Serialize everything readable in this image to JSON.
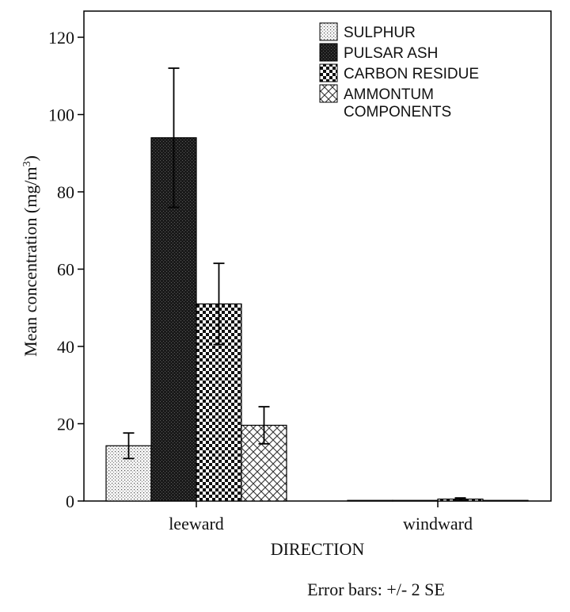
{
  "chart_data": {
    "type": "bar",
    "categories": [
      "leeward",
      "windward"
    ],
    "series": [
      {
        "name": "SULPHUR",
        "pattern": "dots-light",
        "values": [
          14.3,
          0.1
        ],
        "error": [
          3.3,
          0.0
        ]
      },
      {
        "name": "PULSAR ASH",
        "pattern": "dark-fine",
        "values": [
          94,
          0.1
        ],
        "error": [
          18,
          0.0
        ]
      },
      {
        "name": "CARBON RESIDUE",
        "pattern": "checker",
        "values": [
          51,
          0.5
        ],
        "error": [
          10.5,
          0.3
        ]
      },
      {
        "name": "AMMONTUM COMPONENTS",
        "legend_lines": [
          "AMMONTUM",
          "COMPONENTS"
        ],
        "pattern": "crosshatch",
        "values": [
          19.6,
          0.1
        ],
        "error": [
          4.8,
          0.0
        ]
      }
    ],
    "xlabel": "DIRECTION",
    "ylabel": "Mean concentration (mg/m",
    "ylabel_sup": "3",
    "ylabel_end": ")",
    "ylim": [
      0,
      125
    ],
    "yticks": [
      "0",
      "20",
      "40",
      "60",
      "80",
      "100",
      "120"
    ],
    "note": "Error bars: +/- 2 SE",
    "legend_position": "top-right",
    "grid": false
  }
}
